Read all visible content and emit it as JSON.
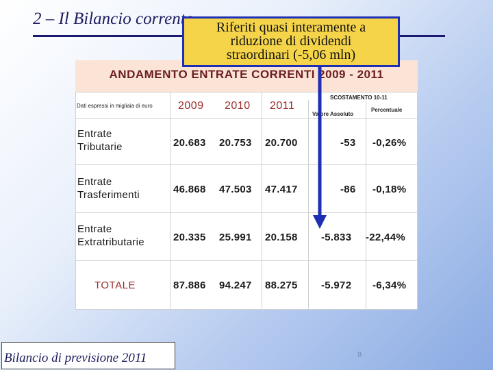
{
  "slide": {
    "title": "2 – Il Bilancio corrente",
    "footer": "Bilancio di previsione 2011",
    "page_number": "9"
  },
  "callout": {
    "line1": "Riferiti quasi interamente a",
    "line2": "riduzione di dividendi",
    "line3": "straordinari (-5,06 mln)"
  },
  "table": {
    "title": "ANDAMENTO ENTRATE CORRENTI 2009 - 2011",
    "note": "Dati espressi in migliaia di euro",
    "scost_header": "SCOSTAMENTO 10-11",
    "abs_header": "Valore Assoluto",
    "pct_header": "Percentuale",
    "years": [
      "2009",
      "2010",
      "2011"
    ],
    "rows": [
      {
        "label_line1": "Entrate",
        "label_line2": "Tributarie",
        "v2009": "20.683",
        "v2010": "20.753",
        "v2011": "20.700",
        "abs": "-53",
        "pct": "-0,26%"
      },
      {
        "label_line1": "Entrate",
        "label_line2": "Trasferimenti",
        "v2009": "46.868",
        "v2010": "47.503",
        "v2011": "47.417",
        "abs": "-86",
        "pct": "-0,18%"
      },
      {
        "label_line1": "Entrate",
        "label_line2": "Extratributarie",
        "v2009": "20.335",
        "v2010": "25.991",
        "v2011": "20.158",
        "abs": "-5.833",
        "pct": "-22,44%"
      }
    ],
    "total": {
      "label": "TOTALE",
      "v2009": "87.886",
      "v2010": "94.247",
      "v2011": "88.275",
      "abs": "-5.972",
      "pct": "-6,34%"
    }
  },
  "colors": {
    "callout_bg": "#f5d44a",
    "callout_border": "#1f2fb4",
    "arrow": "#1f2fb4",
    "title": "#1b1b5e"
  }
}
